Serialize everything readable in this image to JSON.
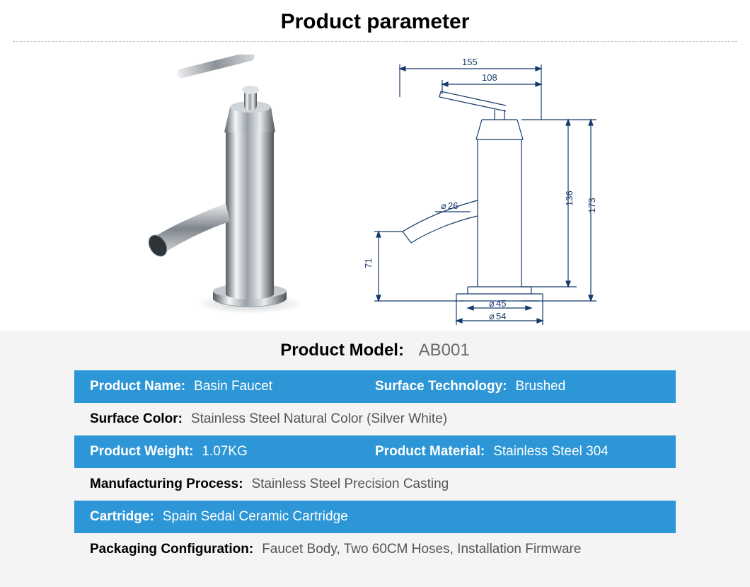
{
  "title": "Product parameter",
  "model": {
    "label": "Product Model:",
    "value": "AB001"
  },
  "rows": [
    {
      "style": "blue",
      "cols": [
        {
          "k": "Product Name:",
          "v": "Basin Faucet"
        },
        {
          "k": "Surface Technology:",
          "v": "Brushed"
        }
      ]
    },
    {
      "style": "white",
      "cols": [
        {
          "k": "Surface Color:",
          "v": "Stainless Steel Natural Color (Silver White)"
        }
      ]
    },
    {
      "style": "blue",
      "cols": [
        {
          "k": "Product Weight:",
          "v": "1.07KG"
        },
        {
          "k": "Product Material:",
          "v": "Stainless Steel 304"
        }
      ]
    },
    {
      "style": "white",
      "cols": [
        {
          "k": "Manufacturing Process:",
          "v": "Stainless Steel Precision Casting"
        }
      ]
    },
    {
      "style": "blue",
      "cols": [
        {
          "k": "Cartridge:",
          "v": "Spain Sedal Ceramic Cartridge"
        }
      ]
    },
    {
      "style": "white",
      "cols": [
        {
          "k": "Packaging Configuration:",
          "v": "Faucet Body, Two 60CM Hoses, Installation Firmware"
        }
      ]
    }
  ],
  "diagram": {
    "type": "engineering-dimension-drawing",
    "stroke_color": "#153a6b",
    "stroke_width": 1.2,
    "font_size_pt": 11,
    "dimensions": {
      "top_width_overall": 155,
      "top_width_body": 108,
      "spout_diameter": 26,
      "spout_height_from_base": 71,
      "body_height": 136,
      "overall_height": 173,
      "base_inner_diameter": 45,
      "base_outer_diameter": 54
    }
  },
  "render": {
    "type": "faucet-3d-render",
    "highlight_color": "#ffffff",
    "mid_color": "#b8bfc5",
    "shadow_color": "#5a6168",
    "base_shadow": "#d9dbdd"
  },
  "colors": {
    "blue_row": "#2c96d6",
    "page_bg": "#ffffff",
    "lower_bg": "#f4f4f4",
    "text": "#000000",
    "muted": "#6a6a6a"
  }
}
